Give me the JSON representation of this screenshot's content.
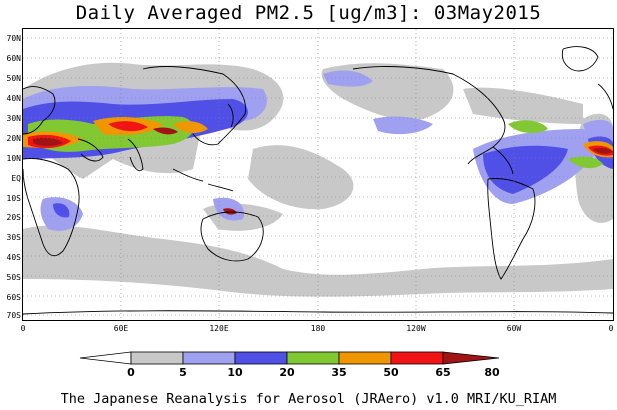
{
  "title": "Daily Averaged PM2.5 [ug/m3]: 03May2015",
  "footer": "The Japanese Reanalysis for Aerosol (JRAero) v1.0 MRI/KU_RIAM",
  "map": {
    "latitude_labels": [
      "70N",
      "60N",
      "50N",
      "40N",
      "30N",
      "20N",
      "10N",
      "EQ",
      "10S",
      "20S",
      "30S",
      "40S",
      "50S",
      "60S",
      "70S"
    ],
    "longitude_labels": [
      "0",
      "60E",
      "120E",
      "180",
      "120W",
      "60W",
      "0"
    ],
    "grid": "dotted",
    "ocean_color": "#ffffff",
    "coastline_color": "#000000"
  },
  "colorbar": {
    "levels": [
      "0",
      "5",
      "10",
      "20",
      "35",
      "50",
      "65",
      "80"
    ],
    "colors": [
      "#ffffff",
      "#c8c8c8",
      "#a0a0f0",
      "#5050e6",
      "#82c832",
      "#f09600",
      "#f01414",
      "#a01414"
    ]
  }
}
